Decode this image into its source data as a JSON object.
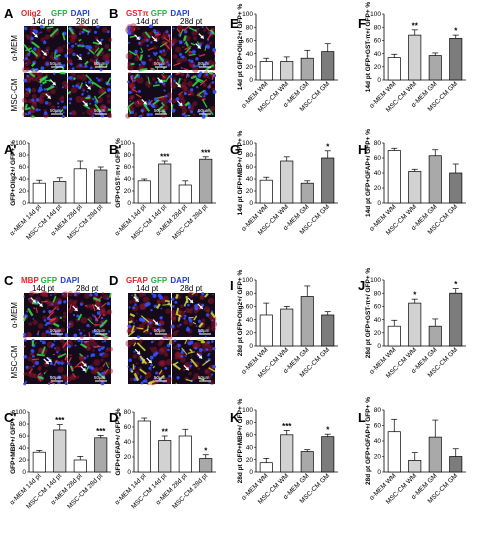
{
  "colors": {
    "red": "#e8232a",
    "green": "#21b33f",
    "blue": "#1f3fd4",
    "bar_white": "#ffffff",
    "bar_light": "#d2d2d2",
    "bar_mid": "#a9a9a9",
    "bar_dark": "#7c7c7c"
  },
  "micro_panels": [
    {
      "letter": "A",
      "stains": [
        {
          "text": "Olig2",
          "color": "#e8232a"
        },
        {
          "text": "GFP",
          "color": "#21b33f"
        },
        {
          "text": "DAPI",
          "color": "#1f3fd4"
        }
      ],
      "col_labels": [
        "14d pt",
        "28d pt"
      ],
      "row_labels": [
        "α-MEM",
        "MSC-CM"
      ],
      "scale": "50µm",
      "ink": "green"
    },
    {
      "letter": "B",
      "stains": [
        {
          "text": "GSTπ",
          "color": "#e8232a"
        },
        {
          "text": "GFP",
          "color": "#21b33f"
        },
        {
          "text": "DAPI",
          "color": "#1f3fd4"
        }
      ],
      "col_labels": [
        "14d pt",
        "28d pt"
      ],
      "row_labels": [],
      "scale": "50µm",
      "ink": "mixed"
    },
    {
      "letter": "C",
      "stains": [
        {
          "text": "MBP",
          "color": "#e8232a"
        },
        {
          "text": "GFP",
          "color": "#21b33f"
        },
        {
          "text": "DAPI",
          "color": "#1f3fd4"
        }
      ],
      "col_labels": [
        "14d pt",
        "28d pt"
      ],
      "row_labels": [
        "α-MEM",
        "MSC-CM"
      ],
      "scale": "50µm",
      "ink": "red"
    },
    {
      "letter": "D",
      "stains": [
        {
          "text": "GFAP",
          "color": "#e8232a"
        },
        {
          "text": "GFP",
          "color": "#21b33f"
        },
        {
          "text": "DAPI",
          "color": "#1f3fd4"
        }
      ],
      "col_labels": [
        "14d pt",
        "28d pt"
      ],
      "row_labels": [],
      "scale": "50µm",
      "ink": "yellow"
    }
  ],
  "chart_data": [
    {
      "panel": "A'",
      "type": "bar",
      "categories": [
        "α-MEM 14d pt",
        "MSC-CM 14d pt",
        "α-MEM 28d pt",
        "MSC-CM 28d pt"
      ],
      "values": [
        33,
        36,
        57,
        55
      ],
      "errors": [
        5,
        6,
        13,
        5
      ],
      "colors": [
        "#ffffff",
        "#d2d2d2",
        "#ffffff",
        "#a9a9a9"
      ],
      "stars": [
        "",
        "",
        "",
        ""
      ],
      "ylabel": "GFP+Olig2+/ GFP+ %",
      "yticks": [
        0,
        20,
        40,
        60,
        80,
        100
      ],
      "ylim": [
        0,
        100
      ]
    },
    {
      "panel": "B'",
      "type": "bar",
      "categories": [
        "α-MEM 14d pt",
        "MSC-CM 14d pt",
        "α-MEM 28d pt",
        "MSC-CM 28d pt"
      ],
      "values": [
        37,
        65,
        30,
        73
      ],
      "errors": [
        3,
        5,
        7,
        4
      ],
      "colors": [
        "#ffffff",
        "#d2d2d2",
        "#ffffff",
        "#a9a9a9"
      ],
      "stars": [
        "",
        "***",
        "",
        "***"
      ],
      "ylabel": "GFP+GST-π+/ GFP+ %",
      "yticks": [
        0,
        20,
        40,
        60,
        80,
        100
      ],
      "ylim": [
        0,
        100
      ]
    },
    {
      "panel": "C'",
      "type": "bar",
      "categories": [
        "α-MEM 14d pt",
        "MSC-CM 14d pt",
        "α-MEM 28d pt",
        "MSC-CM 28d pt"
      ],
      "values": [
        33,
        70,
        20,
        57
      ],
      "errors": [
        3,
        9,
        6,
        4
      ],
      "colors": [
        "#ffffff",
        "#d2d2d2",
        "#ffffff",
        "#a9a9a9"
      ],
      "stars": [
        "",
        "***",
        "",
        "***"
      ],
      "ylabel": "GFP+MBP+/ GFP+ %",
      "yticks": [
        0,
        20,
        40,
        60,
        80,
        100
      ],
      "ylim": [
        0,
        100
      ]
    },
    {
      "panel": "D'",
      "type": "bar",
      "categories": [
        "α-MEM 14d pt",
        "MSC-CM 14d pt",
        "α-MEM 28d pt",
        "MSC-CM 28d pt"
      ],
      "values": [
        68,
        42,
        48,
        18
      ],
      "errors": [
        4,
        6,
        9,
        5
      ],
      "colors": [
        "#ffffff",
        "#d2d2d2",
        "#ffffff",
        "#a9a9a9"
      ],
      "stars": [
        "",
        "**",
        "",
        "*"
      ],
      "ylabel": "GFP+GFAP+/ GFP+ %",
      "yticks": [
        0,
        20,
        40,
        60,
        80
      ],
      "ylim": [
        0,
        80
      ]
    },
    {
      "panel": "E",
      "type": "bar",
      "categories": [
        "α-MEM WM",
        "MSC-CM WM",
        "α-MEM GM",
        "MSC-CM GM"
      ],
      "values": [
        28,
        28,
        33,
        43
      ],
      "errors": [
        5,
        7,
        12,
        12
      ],
      "colors": [
        "#ffffff",
        "#d2d2d2",
        "#a9a9a9",
        "#7c7c7c"
      ],
      "stars": [
        "",
        "",
        "",
        ""
      ],
      "ylabel": "14d pt GFP+Olig2+/ GFP+ %",
      "yticks": [
        0,
        20,
        40,
        60,
        80,
        100
      ],
      "ylim": [
        0,
        100
      ]
    },
    {
      "panel": "F",
      "type": "bar",
      "categories": [
        "α-MEM WM",
        "MSC-CM WM",
        "α-MEM GM",
        "MSC-CM GM"
      ],
      "values": [
        34,
        68,
        37,
        63
      ],
      "errors": [
        5,
        8,
        4,
        5
      ],
      "colors": [
        "#ffffff",
        "#d2d2d2",
        "#a9a9a9",
        "#7c7c7c"
      ],
      "stars": [
        "",
        "**",
        "",
        "*"
      ],
      "ylabel": "14d pt GFP+GST-π+/ GFP+ %",
      "yticks": [
        0,
        20,
        40,
        60,
        80,
        100
      ],
      "ylim": [
        0,
        100
      ]
    },
    {
      "panel": "G",
      "type": "bar",
      "categories": [
        "α-MEM WM",
        "MSC-CM WM",
        "α-MEM GM",
        "MSC-CM GM"
      ],
      "values": [
        38,
        70,
        33,
        75
      ],
      "errors": [
        5,
        7,
        4,
        12
      ],
      "colors": [
        "#ffffff",
        "#d2d2d2",
        "#a9a9a9",
        "#7c7c7c"
      ],
      "stars": [
        "",
        "",
        "",
        "*"
      ],
      "ylabel": "14d pt GFP+MBP+/ GFP+ %",
      "yticks": [
        0,
        20,
        40,
        60,
        80,
        100
      ],
      "ylim": [
        0,
        100
      ]
    },
    {
      "panel": "H",
      "type": "bar",
      "categories": [
        "α-MEM WM",
        "MSC-CM WM",
        "α-MEM GM",
        "MSC-CM GM"
      ],
      "values": [
        70,
        42,
        63,
        40
      ],
      "errors": [
        3,
        3,
        8,
        12
      ],
      "colors": [
        "#ffffff",
        "#d2d2d2",
        "#a9a9a9",
        "#7c7c7c"
      ],
      "stars": [
        "",
        "",
        "",
        ""
      ],
      "ylabel": "14d pt GFP+GFAP+/ GFP+ %",
      "yticks": [
        0,
        20,
        40,
        60,
        80
      ],
      "ylim": [
        0,
        80
      ]
    },
    {
      "panel": "I",
      "type": "bar",
      "categories": [
        "α-MEM WM",
        "MSC-CM WM",
        "α-MEM GM",
        "MSC-CM GM"
      ],
      "values": [
        47,
        56,
        75,
        47
      ],
      "errors": [
        18,
        4,
        16,
        5
      ],
      "colors": [
        "#ffffff",
        "#d2d2d2",
        "#a9a9a9",
        "#7c7c7c"
      ],
      "stars": [
        "",
        "",
        "",
        ""
      ],
      "ylabel": "28d pt GFP+Olig2+/ GFP+ %",
      "yticks": [
        0,
        20,
        40,
        60,
        80,
        100
      ],
      "ylim": [
        0,
        100
      ]
    },
    {
      "panel": "J",
      "type": "bar",
      "categories": [
        "α-MEM WM",
        "MSC-CM WM",
        "α-MEM GM",
        "MSC-CM GM"
      ],
      "values": [
        30,
        65,
        30,
        80
      ],
      "errors": [
        9,
        6,
        11,
        7
      ],
      "colors": [
        "#ffffff",
        "#d2d2d2",
        "#a9a9a9",
        "#7c7c7c"
      ],
      "stars": [
        "",
        "*",
        "",
        "*"
      ],
      "ylabel": "28d pt GFP+GST-π+/ GFP+ %",
      "yticks": [
        0,
        20,
        40,
        60,
        80,
        100
      ],
      "ylim": [
        0,
        100
      ]
    },
    {
      "panel": "K",
      "type": "bar",
      "categories": [
        "α-MEM WM",
        "MSC-CM WM",
        "α-MEM GM",
        "MSC-CM GM"
      ],
      "values": [
        15,
        60,
        33,
        57
      ],
      "errors": [
        7,
        7,
        3,
        4
      ],
      "colors": [
        "#ffffff",
        "#d2d2d2",
        "#a9a9a9",
        "#7c7c7c"
      ],
      "stars": [
        "",
        "***",
        "",
        "*"
      ],
      "ylabel": "28d pt GFP+MBP+/ GFP+ %",
      "yticks": [
        0,
        20,
        40,
        60,
        80,
        100
      ],
      "ylim": [
        0,
        100
      ]
    },
    {
      "panel": "L",
      "type": "bar",
      "categories": [
        "α-MEM WM",
        "MSC-CM WM",
        "α-MEM GM",
        "MSC-CM GM"
      ],
      "values": [
        52,
        15,
        45,
        20
      ],
      "errors": [
        16,
        10,
        22,
        10
      ],
      "colors": [
        "#ffffff",
        "#d2d2d2",
        "#a9a9a9",
        "#7c7c7c"
      ],
      "stars": [
        "",
        "",
        "",
        ""
      ],
      "ylabel": "28d pt GFP+GFAP+/ GFP+ %",
      "yticks": [
        0,
        20,
        40,
        60,
        80
      ],
      "ylim": [
        0,
        80
      ]
    }
  ]
}
